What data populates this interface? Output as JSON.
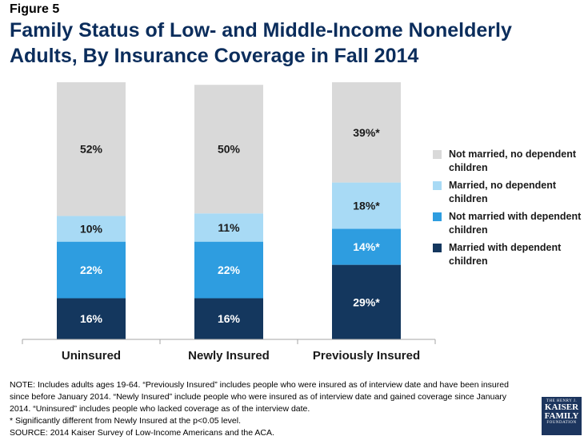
{
  "figure_label": "Figure 5",
  "title": "Family Status of Low- and Middle-Income Nonelderly Adults, By Insurance Coverage in Fall 2014",
  "chart_data": {
    "type": "bar",
    "stacked": true,
    "ylim": [
      0,
      100
    ],
    "categories": [
      "Uninsured",
      "Newly Insured",
      "Previously Insured"
    ],
    "series": [
      {
        "name": "Married with dependent children",
        "color": "#14375e",
        "values": [
          16,
          16,
          29
        ],
        "labels": [
          "16%",
          "16%",
          "29%*"
        ]
      },
      {
        "name": "Not married with dependent children",
        "color": "#2e9de0",
        "values": [
          22,
          22,
          14
        ],
        "labels": [
          "22%",
          "22%",
          "14%*"
        ]
      },
      {
        "name": "Married, no dependent children",
        "color": "#a8daf5",
        "values": [
          10,
          11,
          18
        ],
        "labels": [
          "10%",
          "11%",
          "18%*"
        ]
      },
      {
        "name": "Not married, no dependent children",
        "color": "#d9d9d9",
        "values": [
          52,
          50,
          39
        ],
        "labels": [
          "52%",
          "50%",
          "39%*"
        ]
      }
    ],
    "legend_order": [
      3,
      2,
      1,
      0
    ],
    "legend_position": "right"
  },
  "footer": {
    "note": "NOTE: Includes adults ages 19-64. “Previously Insured” includes people who were insured as of interview date and have been insured since before January 2014. “Newly Insured” include people who were insured as of interview date and gained coverage since January 2014. “Uninsured” includes people who lacked coverage as of the interview date.",
    "significance": "* Significantly different from Newly Insured at the p<0.05 level.",
    "source": "SOURCE: 2014 Kaiser Survey of Low-Income Americans and the ACA."
  },
  "logo": {
    "line1": "THE HENRY J.",
    "line2": "KAISER",
    "line3": "FAMILY",
    "line4": "FOUNDATION"
  }
}
